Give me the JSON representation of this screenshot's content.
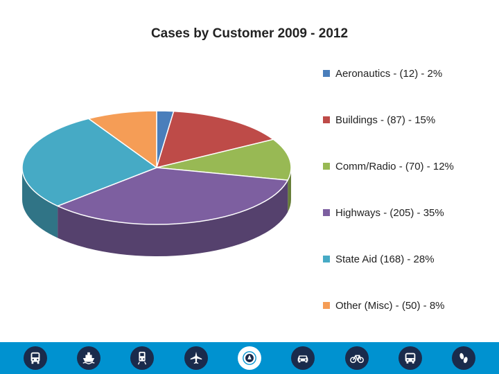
{
  "chart_data": {
    "type": "pie",
    "title": "Cases by Customer 2009 - 2012",
    "categories": [
      "Aeronautics",
      "Buildings",
      "Comm/Radio",
      "Highways",
      "State Aid",
      "Other (Misc)"
    ],
    "values": [
      12,
      87,
      70,
      205,
      168,
      50
    ],
    "percents": [
      2,
      15,
      12,
      35,
      28,
      8
    ],
    "colors": [
      "#4a7ebb",
      "#be4b48",
      "#98b954",
      "#7d5fa0",
      "#46aac5",
      "#f59d56"
    ],
    "legend": [
      "Aeronautics - (12) - 2%",
      "Buildings - (87) - 15%",
      "Comm/Radio - (70) - 12%",
      "Highways - (205) - 35%",
      "State Aid  (168) - 28%",
      "Other (Misc) - (50) - 8%"
    ],
    "legend_position": "right",
    "style": "3d-pie"
  },
  "footer": {
    "background": "#0092d0",
    "icons": [
      "bus-icon",
      "ship-icon",
      "train-icon",
      "airplane-icon",
      "dot-seal-icon",
      "car-icon",
      "bicycle-icon",
      "transit-bus-icon",
      "footprints-icon"
    ]
  }
}
